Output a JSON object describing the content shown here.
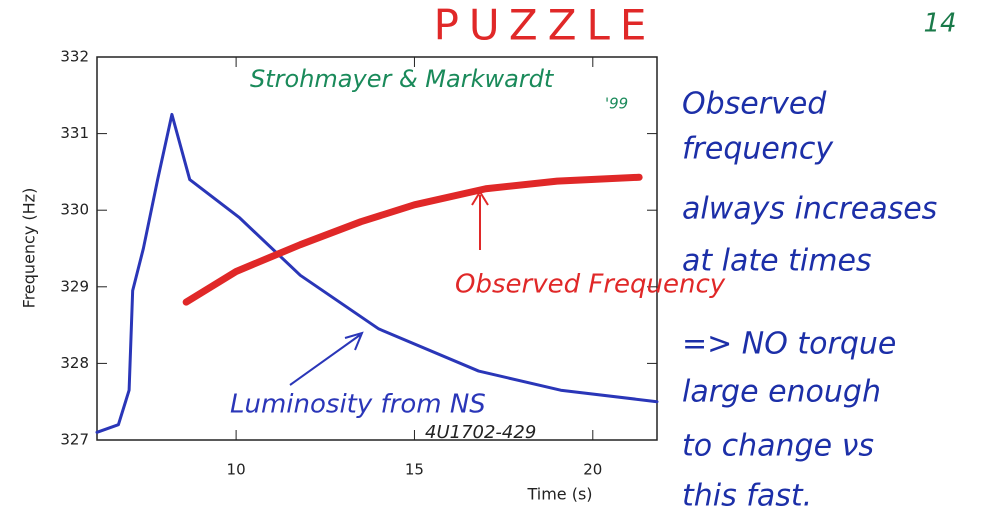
{
  "page_number": "14",
  "chart_data": {
    "type": "line",
    "title": "PUZZLE",
    "x_label": "Time (s)",
    "y_label": "Frequency (Hz)",
    "xlim": [
      6.1,
      21.8
    ],
    "ylim": [
      327,
      332
    ],
    "xticks": [
      10,
      15,
      20
    ],
    "yticks": [
      327,
      328,
      329,
      330,
      331,
      332
    ],
    "annotations": [
      "Strohmayer & Markwardt",
      "'99",
      "4U1702-429"
    ],
    "series": [
      {
        "name": "Luminosity from NS",
        "color": "#2a36b8",
        "x": [
          6.1,
          6.7,
          7.0,
          7.1,
          7.4,
          7.8,
          8.2,
          8.7,
          10.1,
          11.8,
          14.0,
          16.8,
          19.1,
          21.8
        ],
        "values": [
          327.1,
          327.2,
          327.65,
          328.95,
          329.5,
          330.4,
          331.25,
          330.4,
          329.9,
          329.15,
          328.45,
          327.9,
          327.65,
          327.5
        ]
      },
      {
        "name": "Observed Frequency",
        "color": "#e02828",
        "x": [
          8.6,
          10.0,
          11.8,
          13.5,
          15.0,
          17.0,
          19.0,
          21.3
        ],
        "values": [
          328.8,
          329.2,
          329.55,
          329.85,
          330.07,
          330.28,
          330.38,
          330.43
        ]
      }
    ]
  },
  "notes": [
    "Observed",
    "frequency",
    "always increases",
    "at late times",
    "=> NO torque",
    "large enough",
    "to change νs",
    "this fast."
  ]
}
